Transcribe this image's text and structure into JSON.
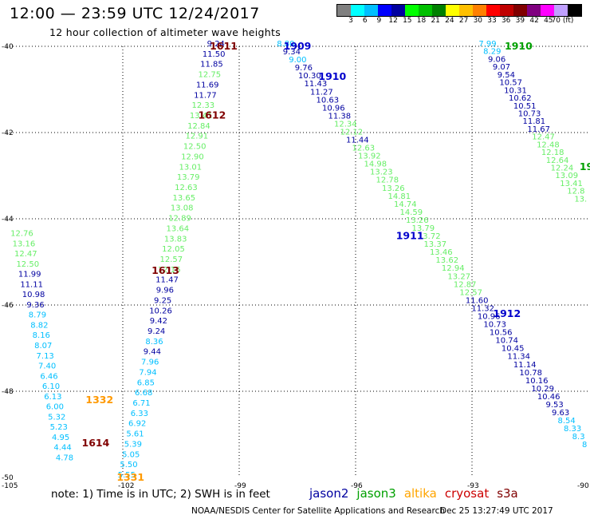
{
  "header": {
    "title": "12:00 — 23:59 UTC 12/24/2017",
    "subtitle": "12 hour collection of altimeter wave heights"
  },
  "colorbar": {
    "colors": [
      "#808080",
      "#00ffff",
      "#00bfff",
      "#0000ff",
      "#0000a0",
      "#00ff00",
      "#00c000",
      "#008000",
      "#ffff00",
      "#ffc000",
      "#ff8000",
      "#ff0000",
      "#c00000",
      "#800000",
      "#800080",
      "#ff00ff",
      "#c0a0ff",
      "#000000"
    ],
    "labels": [
      "3",
      "6",
      "9",
      "12",
      "15",
      "18",
      "21",
      "24",
      "27",
      "30",
      "33",
      "36",
      "39",
      "42",
      "45",
      "70 (ft)"
    ]
  },
  "colors": {
    "jason2": "#0000a0",
    "jason3": "#00a000",
    "altika": "#ffa500",
    "cryosat": "#cc0000",
    "s3a": "#800000",
    "swh_low": "#00bfff",
    "swh_cyan": "#00ffff",
    "swh_green": "#66ee66"
  },
  "note": "note: 1) Time is in UTC; 2) SWH is in feet",
  "satellites": [
    "jason2",
    "jason3",
    "altika",
    "cryosat",
    "s3a"
  ],
  "footer": {
    "left": "NOAA/NESDIS Center for Satellite Applications and Research",
    "right": "Dec 25 13:27:49 UTC 2017"
  },
  "chart_data": {
    "type": "scatter",
    "xlim": [
      -105,
      -90
    ],
    "ylim": [
      -50,
      -40
    ],
    "x_ticks": [
      "-105",
      "-102",
      "-99",
      "-96",
      "-93",
      "-90"
    ],
    "y_ticks": [
      "-40",
      "-42",
      "-44",
      "-46",
      "-48",
      "-50"
    ],
    "pass_labels": [
      {
        "text": "1611",
        "lon": -99.4,
        "lat": -40.0,
        "sat": "s3a"
      },
      {
        "text": "1612",
        "lon": -99.7,
        "lat": -41.6,
        "sat": "s3a"
      },
      {
        "text": "1613",
        "lon": -100.9,
        "lat": -45.2,
        "sat": "s3a"
      },
      {
        "text": "1614",
        "lon": -102.7,
        "lat": -49.2,
        "sat": "s3a"
      },
      {
        "text": "1332",
        "lon": -102.6,
        "lat": -48.2,
        "sat": "altika"
      },
      {
        "text": "1331",
        "lon": -101.8,
        "lat": -50.0,
        "sat": "altika"
      },
      {
        "text": "1909",
        "lon": -97.5,
        "lat": -40.0,
        "sat": "jason2"
      },
      {
        "text": "1910",
        "lon": -96.6,
        "lat": -40.7,
        "sat": "jason2"
      },
      {
        "text": "1911",
        "lon": -94.6,
        "lat": -44.4,
        "sat": "jason2"
      },
      {
        "text": "1912",
        "lon": -92.1,
        "lat": -46.2,
        "sat": "jason2"
      },
      {
        "text": "1910",
        "lon": -91.8,
        "lat": -40.0,
        "sat": "jason3"
      },
      {
        "text": "19",
        "lon": -90.05,
        "lat": -42.8,
        "sat": "jason3"
      }
    ],
    "tracks": [
      {
        "name": "s3a-desc",
        "color": "mixed",
        "points": [
          {
            "v": "9.24",
            "c": "#0000a0"
          },
          {
            "v": "11.50",
            "c": "#0000a0"
          },
          {
            "v": "11.85",
            "c": "#0000a0"
          },
          {
            "v": "12.75",
            "c": "#66ee66"
          },
          {
            "v": "11.69",
            "c": "#0000a0"
          },
          {
            "v": "11.77",
            "c": "#0000a0"
          },
          {
            "v": "12.33",
            "c": "#66ee66"
          },
          {
            "v": "13.41",
            "c": "#66ee66"
          },
          {
            "v": "12.84",
            "c": "#66ee66"
          },
          {
            "v": "12.91",
            "c": "#66ee66"
          },
          {
            "v": "12.50",
            "c": "#66ee66"
          },
          {
            "v": "12.90",
            "c": "#66ee66"
          },
          {
            "v": "13.01",
            "c": "#66ee66"
          },
          {
            "v": "13.79",
            "c": "#66ee66"
          },
          {
            "v": "12.63",
            "c": "#66ee66"
          },
          {
            "v": "13.65",
            "c": "#66ee66"
          },
          {
            "v": "13.08",
            "c": "#66ee66"
          },
          {
            "v": "12.89",
            "c": "#66ee66"
          },
          {
            "v": "13.64",
            "c": "#66ee66"
          },
          {
            "v": "13.83",
            "c": "#66ee66"
          },
          {
            "v": "12.05",
            "c": "#66ee66"
          },
          {
            "v": "12.57",
            "c": "#66ee66"
          },
          {
            "v": "12.16",
            "c": "#66ee66"
          },
          {
            "v": "11.47",
            "c": "#0000a0"
          },
          {
            "v": "9.96",
            "c": "#0000a0"
          },
          {
            "v": "9.25",
            "c": "#0000a0"
          },
          {
            "v": "10.26",
            "c": "#0000a0"
          },
          {
            "v": "9.42",
            "c": "#0000a0"
          },
          {
            "v": "9.24",
            "c": "#0000a0"
          },
          {
            "v": "8.36",
            "c": "#00bfff"
          },
          {
            "v": "9.44",
            "c": "#0000a0"
          },
          {
            "v": "7.96",
            "c": "#00bfff"
          },
          {
            "v": "7.94",
            "c": "#00bfff"
          },
          {
            "v": "6.85",
            "c": "#00bfff"
          },
          {
            "v": "6.68",
            "c": "#00bfff"
          },
          {
            "v": "6.71",
            "c": "#00bfff"
          },
          {
            "v": "6.33",
            "c": "#00bfff"
          },
          {
            "v": "6.92",
            "c": "#00bfff"
          },
          {
            "v": "5.61",
            "c": "#00bfff"
          },
          {
            "v": "5.39",
            "c": "#00bfff"
          },
          {
            "v": "5.05",
            "c": "#00bfff"
          },
          {
            "v": "5.50",
            "c": "#00bfff"
          },
          {
            "v": "5.55",
            "c": "#00bfff"
          }
        ],
        "lon_start": -99.6,
        "lat_start": -40.0,
        "lon_end": -101.9,
        "lat_end": -50.0
      },
      {
        "name": "altika-left",
        "color": "mixed",
        "points": [
          {
            "v": "12.76",
            "c": "#66ee66"
          },
          {
            "v": "13.16",
            "c": "#66ee66"
          },
          {
            "v": "12.47",
            "c": "#66ee66"
          },
          {
            "v": "12.50",
            "c": "#66ee66"
          },
          {
            "v": "11.99",
            "c": "#0000a0"
          },
          {
            "v": "11.11",
            "c": "#0000a0"
          },
          {
            "v": "10.98",
            "c": "#0000a0"
          },
          {
            "v": "9.36",
            "c": "#0000a0"
          },
          {
            "v": "8.79",
            "c": "#00bfff"
          },
          {
            "v": "8.82",
            "c": "#00bfff"
          },
          {
            "v": "8.16",
            "c": "#00bfff"
          },
          {
            "v": "8.07",
            "c": "#00bfff"
          },
          {
            "v": "7.13",
            "c": "#00bfff"
          },
          {
            "v": "7.40",
            "c": "#00bfff"
          },
          {
            "v": "6.46",
            "c": "#00bfff"
          },
          {
            "v": "6.10",
            "c": "#00bfff"
          },
          {
            "v": "6.13",
            "c": "#00bfff"
          },
          {
            "v": "6.00",
            "c": "#00bfff"
          },
          {
            "v": "5.32",
            "c": "#00bfff"
          },
          {
            "v": "5.23",
            "c": "#00bfff"
          },
          {
            "v": "4.95",
            "c": "#00bfff"
          },
          {
            "v": "4.44",
            "c": "#00bfff"
          },
          {
            "v": "4.78",
            "c": "#00bfff"
          }
        ],
        "lon_start": -104.6,
        "lat_start": -44.4,
        "lon_end": -103.5,
        "lat_end": -49.6
      },
      {
        "name": "jason2-1909",
        "color": "mixed",
        "points": [
          {
            "v": "8.80",
            "c": "#00bfff"
          },
          {
            "v": "9.34",
            "c": "#0000a0"
          },
          {
            "v": "9.00",
            "c": "#00bfff"
          },
          {
            "v": "9.76",
            "c": "#0000a0"
          },
          {
            "v": "10.30",
            "c": "#0000a0"
          },
          {
            "v": "11.43",
            "c": "#0000a0"
          },
          {
            "v": "11.27",
            "c": "#0000a0"
          },
          {
            "v": "10.63",
            "c": "#0000a0"
          },
          {
            "v": "10.96",
            "c": "#0000a0"
          },
          {
            "v": "11.38",
            "c": "#0000a0"
          },
          {
            "v": "12.34",
            "c": "#66ee66"
          },
          {
            "v": "12.12",
            "c": "#66ee66"
          },
          {
            "v": "11.44",
            "c": "#0000a0"
          },
          {
            "v": "12.63",
            "c": "#66ee66"
          },
          {
            "v": "13.92",
            "c": "#66ee66"
          },
          {
            "v": "14.98",
            "c": "#66ee66"
          },
          {
            "v": "13.23",
            "c": "#66ee66"
          },
          {
            "v": "12.78",
            "c": "#66ee66"
          },
          {
            "v": "13.26",
            "c": "#66ee66"
          },
          {
            "v": "14.81",
            "c": "#66ee66"
          },
          {
            "v": "14.74",
            "c": "#66ee66"
          },
          {
            "v": "14.59",
            "c": "#66ee66"
          },
          {
            "v": "13.26",
            "c": "#66ee66"
          },
          {
            "v": "13.79",
            "c": "#66ee66"
          },
          {
            "v": "13.72",
            "c": "#66ee66"
          },
          {
            "v": "13.37",
            "c": "#66ee66"
          },
          {
            "v": "13.46",
            "c": "#66ee66"
          },
          {
            "v": "13.62",
            "c": "#66ee66"
          },
          {
            "v": "12.94",
            "c": "#66ee66"
          },
          {
            "v": "13.27",
            "c": "#66ee66"
          },
          {
            "v": "12.87",
            "c": "#66ee66"
          },
          {
            "v": "12.57",
            "c": "#66ee66"
          },
          {
            "v": "11.60",
            "c": "#0000a0"
          },
          {
            "v": "11.32",
            "c": "#0000a0"
          },
          {
            "v": "10.96",
            "c": "#0000a0"
          },
          {
            "v": "10.73",
            "c": "#0000a0"
          },
          {
            "v": "10.56",
            "c": "#0000a0"
          },
          {
            "v": "10.74",
            "c": "#0000a0"
          },
          {
            "v": "10.45",
            "c": "#0000a0"
          },
          {
            "v": "11.34",
            "c": "#0000a0"
          },
          {
            "v": "11.14",
            "c": "#0000a0"
          },
          {
            "v": "10.78",
            "c": "#0000a0"
          },
          {
            "v": "10.16",
            "c": "#0000a0"
          },
          {
            "v": "10.29",
            "c": "#0000a0"
          },
          {
            "v": "10.46",
            "c": "#0000a0"
          },
          {
            "v": "9.53",
            "c": "#0000a0"
          },
          {
            "v": "9.63",
            "c": "#0000a0"
          },
          {
            "v": "8.54",
            "c": "#00bfff"
          },
          {
            "v": "8.33",
            "c": "#00bfff"
          },
          {
            "v": "8.3",
            "c": "#00bfff"
          },
          {
            "v": "8",
            "c": "#00bfff"
          }
        ],
        "lon_start": -97.8,
        "lat_start": -40.0,
        "lon_end": -90.1,
        "lat_end": -49.3
      },
      {
        "name": "jason3-1910",
        "color": "mixed",
        "points": [
          {
            "v": "7.99",
            "c": "#00bfff"
          },
          {
            "v": "8.29",
            "c": "#00bfff"
          },
          {
            "v": "9.06",
            "c": "#0000a0"
          },
          {
            "v": "9.07",
            "c": "#0000a0"
          },
          {
            "v": "9.54",
            "c": "#0000a0"
          },
          {
            "v": "10.57",
            "c": "#0000a0"
          },
          {
            "v": "10.31",
            "c": "#0000a0"
          },
          {
            "v": "10.62",
            "c": "#0000a0"
          },
          {
            "v": "10.51",
            "c": "#0000a0"
          },
          {
            "v": "10.73",
            "c": "#0000a0"
          },
          {
            "v": "11.81",
            "c": "#0000a0"
          },
          {
            "v": "11.67",
            "c": "#0000a0"
          },
          {
            "v": "12.47",
            "c": "#66ee66"
          },
          {
            "v": "12.48",
            "c": "#66ee66"
          },
          {
            "v": "12.18",
            "c": "#66ee66"
          },
          {
            "v": "12.64",
            "c": "#66ee66"
          },
          {
            "v": "12.24",
            "c": "#66ee66"
          },
          {
            "v": "13.09",
            "c": "#66ee66"
          },
          {
            "v": "13.41",
            "c": "#66ee66"
          },
          {
            "v": "12.8",
            "c": "#66ee66"
          },
          {
            "v": "13.",
            "c": "#66ee66"
          }
        ],
        "lon_start": -92.6,
        "lat_start": -40.0,
        "lon_end": -90.2,
        "lat_end": -43.6
      }
    ]
  }
}
